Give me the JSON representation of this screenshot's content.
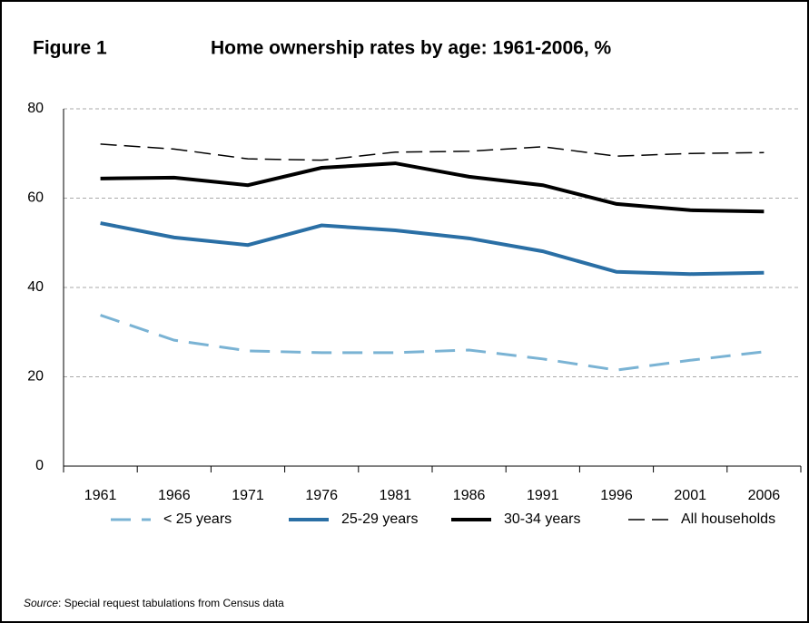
{
  "chart_data": {
    "type": "line",
    "figure_label": "Figure 1",
    "title": "Home ownership rates by age: 1961-2006, %",
    "categories": [
      "1961",
      "1966",
      "1971",
      "1976",
      "1981",
      "1986",
      "1991",
      "1996",
      "2001",
      "2006"
    ],
    "series": [
      {
        "name": "< 25 years",
        "color": "#7ab3d4",
        "dash": "dashed",
        "width": 3,
        "values": [
          33.8,
          28.2,
          25.8,
          25.4,
          25.4,
          26.0,
          24.0,
          21.5,
          23.7,
          25.6
        ]
      },
      {
        "name": "25-29 years",
        "color": "#2a6fa5",
        "dash": "solid",
        "width": 4,
        "values": [
          54.4,
          51.2,
          49.5,
          53.9,
          52.8,
          51.0,
          48.1,
          43.5,
          43.0,
          43.3
        ]
      },
      {
        "name": "30-34 years",
        "color": "#000000",
        "dash": "solid",
        "width": 4,
        "values": [
          64.4,
          64.6,
          62.9,
          66.8,
          67.8,
          64.8,
          62.9,
          58.7,
          57.3,
          57.0
        ]
      },
      {
        "name": "All households",
        "color": "#000000",
        "dash": "dashed",
        "width": 1.5,
        "values": [
          72.1,
          71.0,
          68.8,
          68.5,
          70.3,
          70.5,
          71.5,
          69.4,
          70.0,
          70.2
        ]
      }
    ],
    "ylim": [
      0,
      80
    ],
    "yticks": [
      0,
      20,
      40,
      60,
      80
    ],
    "grid": true,
    "source_label": "Source",
    "source_text": ": Special request tabulations from Census data"
  }
}
